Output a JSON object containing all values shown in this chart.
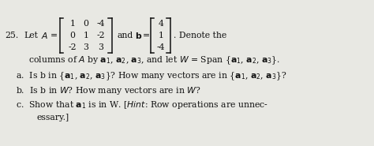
{
  "figsize": [
    4.74,
    1.85
  ],
  "dpi": 100,
  "bg_color": "#e8e8e3",
  "text_color": "#111111",
  "matrix_A": [
    [
      1,
      0,
      -4
    ],
    [
      0,
      1,
      -2
    ],
    [
      -2,
      3,
      3
    ]
  ],
  "vector_b": [
    4,
    1,
    -4
  ],
  "fs_main": 7.8,
  "fs_matrix": 7.8
}
